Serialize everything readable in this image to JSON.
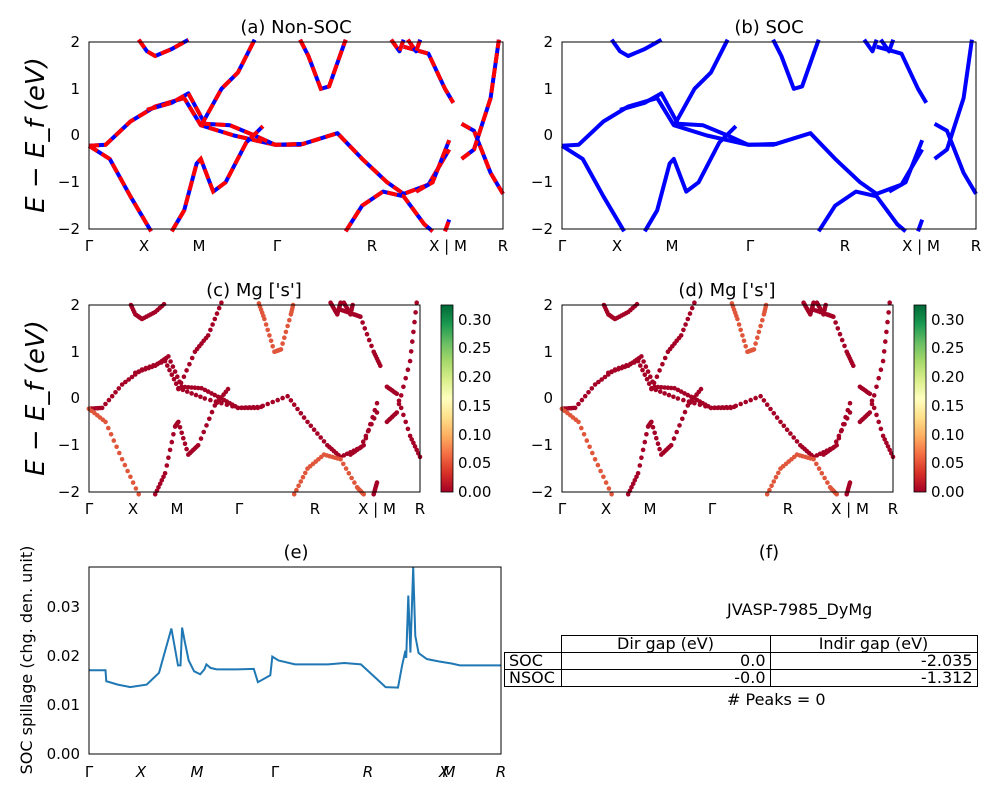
{
  "chart_data": [
    {
      "id": "a",
      "type": "line",
      "title": "(a) Non-SOC",
      "ylabel": "E − E_f (eV)",
      "ylim": [
        -2,
        2
      ],
      "yticks": [
        "−2",
        "−1",
        "0",
        "1",
        "2"
      ],
      "xticks": [
        "Γ",
        "X",
        "M",
        "Γ",
        "R",
        "X | M",
        "R"
      ],
      "series": [
        {
          "color": "#0000ff",
          "style": "solid"
        },
        {
          "color": "#ff0000",
          "style": "dashed"
        }
      ]
    },
    {
      "id": "b",
      "type": "line",
      "title": "(b) SOC",
      "ylim": [
        -2,
        2
      ],
      "yticks": [
        "−2",
        "−1",
        "0",
        "1",
        "2"
      ],
      "xticks": [
        "Γ",
        "X",
        "M",
        "Γ",
        "R",
        "X | M",
        "R"
      ],
      "series": [
        {
          "color": "#0000ff",
          "style": "solid"
        }
      ]
    },
    {
      "id": "c",
      "type": "scatter",
      "title": "(c)  Mg ['s']",
      "ylabel": "E − E_f (eV)",
      "ylim": [
        -2,
        2
      ],
      "yticks": [
        "−2",
        "−1",
        "0",
        "1",
        "2"
      ],
      "xticks": [
        "Γ",
        "X",
        "M",
        "Γ",
        "R",
        "X | M",
        "R"
      ],
      "colorbar": {
        "min": 0.0,
        "max": 0.32,
        "ticks": [
          "0.00",
          "0.05",
          "0.10",
          "0.15",
          "0.20",
          "0.25",
          "0.30"
        ],
        "colormap": "RdYlGn"
      }
    },
    {
      "id": "d",
      "type": "scatter",
      "title": "(d) Mg ['s']",
      "ylim": [
        -2,
        2
      ],
      "yticks": [
        "−2",
        "−1",
        "0",
        "1",
        "2"
      ],
      "xticks": [
        "Γ",
        "X",
        "M",
        "Γ",
        "R",
        "X | M",
        "R"
      ],
      "colorbar": {
        "min": 0.0,
        "max": 0.32,
        "ticks": [
          "0.00",
          "0.05",
          "0.10",
          "0.15",
          "0.20",
          "0.25",
          "0.30"
        ],
        "colormap": "RdYlGn"
      }
    },
    {
      "id": "e",
      "type": "line",
      "title": "(e)",
      "ylabel": "SOC spillage (chg. den. unit)",
      "ylim": [
        0,
        0.038
      ],
      "yticks": [
        "0.00",
        "0.01",
        "0.02",
        "0.03"
      ],
      "xticks": [
        "Γ",
        "X",
        "M",
        "Γ",
        "R",
        "X",
        "M",
        "R"
      ],
      "series": [
        {
          "color": "#1f77b4",
          "x": [
            0,
            0.04,
            0.042,
            0.07,
            0.1,
            0.14,
            0.17,
            0.2,
            0.216,
            0.222,
            0.226,
            0.232,
            0.242,
            0.255,
            0.27,
            0.28,
            0.285,
            0.295,
            0.31,
            0.34,
            0.36,
            0.4,
            0.41,
            0.44,
            0.445,
            0.46,
            0.5,
            0.58,
            0.62,
            0.66,
            0.72,
            0.75,
            0.76,
            0.768,
            0.77,
            0.775,
            0.78,
            0.787,
            0.792,
            0.8,
            0.82,
            0.85,
            0.88,
            0.9,
            1.0
          ],
          "y": [
            0.017,
            0.017,
            0.0148,
            0.0141,
            0.0136,
            0.0141,
            0.0165,
            0.0255,
            0.018,
            0.018,
            0.0257,
            0.023,
            0.019,
            0.0168,
            0.0162,
            0.0172,
            0.0182,
            0.0175,
            0.0172,
            0.0172,
            0.0172,
            0.0173,
            0.0146,
            0.016,
            0.0198,
            0.019,
            0.0182,
            0.0182,
            0.0185,
            0.0182,
            0.0136,
            0.0135,
            0.018,
            0.021,
            0.0195,
            0.0322,
            0.0206,
            0.038,
            0.024,
            0.0205,
            0.0193,
            0.0188,
            0.0184,
            0.018,
            0.018
          ]
        }
      ]
    }
  ],
  "panel_f": {
    "title": "(f)",
    "material": "JVASP-7985_DyMg",
    "headers": [
      "",
      "Dir gap (eV)",
      "Indir gap (eV)"
    ],
    "rows": [
      {
        "label": "SOC",
        "dir": "0.0",
        "indir": "-2.035"
      },
      {
        "label": "NSOC",
        "dir": "-0.0",
        "indir": "-1.312"
      }
    ],
    "peaks": "# Peaks = 0"
  }
}
